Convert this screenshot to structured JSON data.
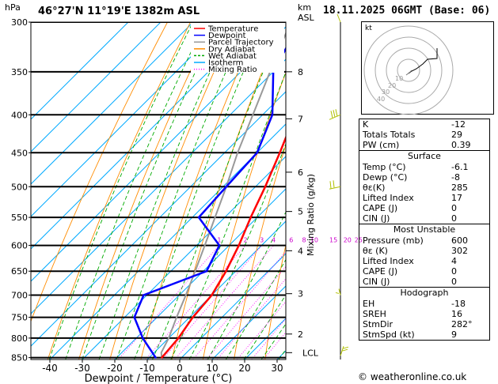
{
  "header": {
    "location": "46°27'N  11°19'E  1382m  ASL",
    "datetime": "18.11.2025  06GMT  (Base: 06)",
    "hpa_label": "hPa",
    "km_label": "km",
    "asl_label": "ASL"
  },
  "chart_data": {
    "type": "skew-t",
    "xlabel": "Dewpoint / Temperature (°C)",
    "ylabel": "Mixing Ratio (g/kg)",
    "pressure_ticks": [
      300,
      350,
      400,
      450,
      500,
      550,
      600,
      650,
      700,
      750,
      800,
      850
    ],
    "temperature_ticks": [
      -40,
      -30,
      -20,
      -10,
      0,
      10,
      20,
      30
    ],
    "altitude_ticks": [
      {
        "p": 350,
        "km": "8"
      },
      {
        "p": 405,
        "km": "7"
      },
      {
        "p": 478,
        "km": "6"
      },
      {
        "p": 540,
        "km": "5"
      },
      {
        "p": 610,
        "km": "4"
      },
      {
        "p": 697,
        "km": "3"
      },
      {
        "p": 790,
        "km": "2"
      }
    ],
    "lcl_label": "LCL",
    "lcl_pressure": 837,
    "mixing_ratio_labels": [
      "1",
      "2",
      "3",
      "4",
      "6",
      "8",
      "10",
      "15",
      "20",
      "25"
    ],
    "legend": [
      {
        "name": "Temperature",
        "color": "#ff0000"
      },
      {
        "name": "Dewpoint",
        "color": "#0000ff"
      },
      {
        "name": "Parcel Trajectory",
        "color": "#999999"
      },
      {
        "name": "Dry Adiabat",
        "color": "#ff8c00"
      },
      {
        "name": "Wet Adiabat",
        "color": "#00aa00"
      },
      {
        "name": "Isotherm",
        "color": "#00aaff"
      },
      {
        "name": "Mixing Ratio",
        "color": "#ff00ff"
      }
    ],
    "temperature_profile": [
      {
        "p": 850,
        "t": -6.1
      },
      {
        "p": 800,
        "t": -7
      },
      {
        "p": 750,
        "t": -9
      },
      {
        "p": 700,
        "t": -10
      },
      {
        "p": 650,
        "t": -13
      },
      {
        "p": 600,
        "t": -17
      },
      {
        "p": 550,
        "t": -22
      },
      {
        "p": 500,
        "t": -27
      },
      {
        "p": 450,
        "t": -33
      },
      {
        "p": 400,
        "t": -40
      },
      {
        "p": 350,
        "t": -48
      },
      {
        "p": 300,
        "t": -55
      }
    ],
    "dewpoint_profile": [
      {
        "p": 850,
        "t": -8
      },
      {
        "p": 800,
        "t": -18
      },
      {
        "p": 750,
        "t": -27
      },
      {
        "p": 700,
        "t": -31
      },
      {
        "p": 650,
        "t": -19
      },
      {
        "p": 600,
        "t": -23
      },
      {
        "p": 550,
        "t": -38
      },
      {
        "p": 500,
        "t": -39
      },
      {
        "p": 450,
        "t": -40
      },
      {
        "p": 400,
        "t": -47
      },
      {
        "p": 350,
        "t": -60
      },
      {
        "p": 300,
        "t": -67
      }
    ],
    "parcel_profile": [
      {
        "p": 850,
        "t": -6.1
      },
      {
        "p": 837,
        "t": -7.8
      },
      {
        "p": 800,
        "t": -10
      },
      {
        "p": 750,
        "t": -14
      },
      {
        "p": 700,
        "t": -18
      },
      {
        "p": 650,
        "t": -22.5
      },
      {
        "p": 600,
        "t": -27.5
      },
      {
        "p": 550,
        "t": -33
      },
      {
        "p": 500,
        "t": -39
      },
      {
        "p": 450,
        "t": -46
      },
      {
        "p": 400,
        "t": -53
      },
      {
        "p": 350,
        "t": -61
      },
      {
        "p": 300,
        "t": -70
      }
    ],
    "xlim": [
      -45,
      37
    ],
    "ylim": [
      300,
      855
    ]
  },
  "hodograph": {
    "label": "kt",
    "ring_labels": [
      "10",
      "20",
      "30",
      "40"
    ]
  },
  "indices": [
    {
      "label": "K",
      "value": "-12"
    },
    {
      "label": "Totals Totals",
      "value": "29"
    },
    {
      "label": "PW (cm)",
      "value": "0.39"
    }
  ],
  "surface": {
    "title": "Surface",
    "rows": [
      {
        "label": "Temp (°C)",
        "value": "-6.1"
      },
      {
        "label": "Dewp (°C)",
        "value": "-8"
      },
      {
        "label": "θε(K)",
        "value": "285"
      },
      {
        "label": "Lifted Index",
        "value": "17"
      },
      {
        "label": "CAPE (J)",
        "value": "0"
      },
      {
        "label": "CIN (J)",
        "value": "0"
      }
    ]
  },
  "most_unstable": {
    "title": "Most Unstable",
    "rows": [
      {
        "label": "Pressure (mb)",
        "value": "600"
      },
      {
        "label": "θε (K)",
        "value": "302"
      },
      {
        "label": "Lifted Index",
        "value": "4"
      },
      {
        "label": "CAPE (J)",
        "value": "0"
      },
      {
        "label": "CIN (J)",
        "value": "0"
      }
    ]
  },
  "hodograph_table": {
    "title": "Hodograph",
    "rows": [
      {
        "label": "EH",
        "value": "-18"
      },
      {
        "label": "SREH",
        "value": "16"
      },
      {
        "label": "StmDir",
        "value": "282°"
      },
      {
        "label": "StmSpd (kt)",
        "value": "9"
      }
    ]
  },
  "credit": "© weatheronline.co.uk"
}
